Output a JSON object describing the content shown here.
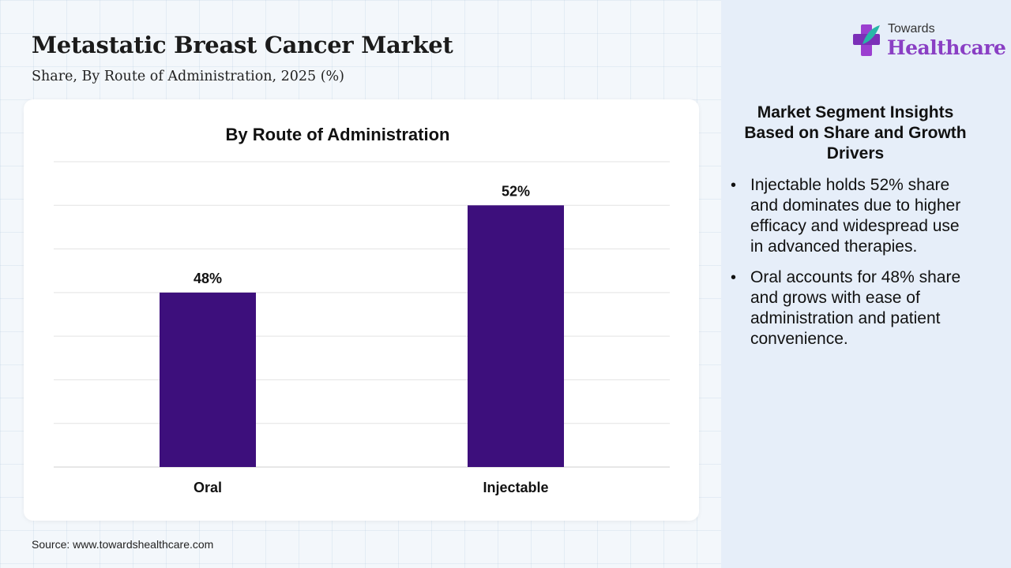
{
  "header": {
    "title": "Metastatic Breast Cancer Market",
    "subtitle": "Share, By Route of Administration, 2025 (%)"
  },
  "logo": {
    "top_text": "Towards",
    "main_text": "Healthcare"
  },
  "chart_data": {
    "type": "bar",
    "title": "By Route of Administration",
    "categories": [
      "Oral",
      "Injectable"
    ],
    "values": [
      48,
      52
    ],
    "value_labels": [
      "48%",
      "52%"
    ],
    "unit": "%",
    "xlabel": "",
    "ylabel": "",
    "ylim": [
      40,
      54
    ],
    "grid": true,
    "bar_color": "#3d0f7c"
  },
  "insights": {
    "title": "Market Segment Insights Based on Share and Growth Drivers",
    "items": [
      "Injectable holds 52% share and dominates due to higher efficacy and widespread use in advanced therapies.",
      "Oral accounts for 48% share and grows with ease of administration and patient convenience."
    ]
  },
  "footer": {
    "source": "Source: www.towardshealthcare.com"
  }
}
